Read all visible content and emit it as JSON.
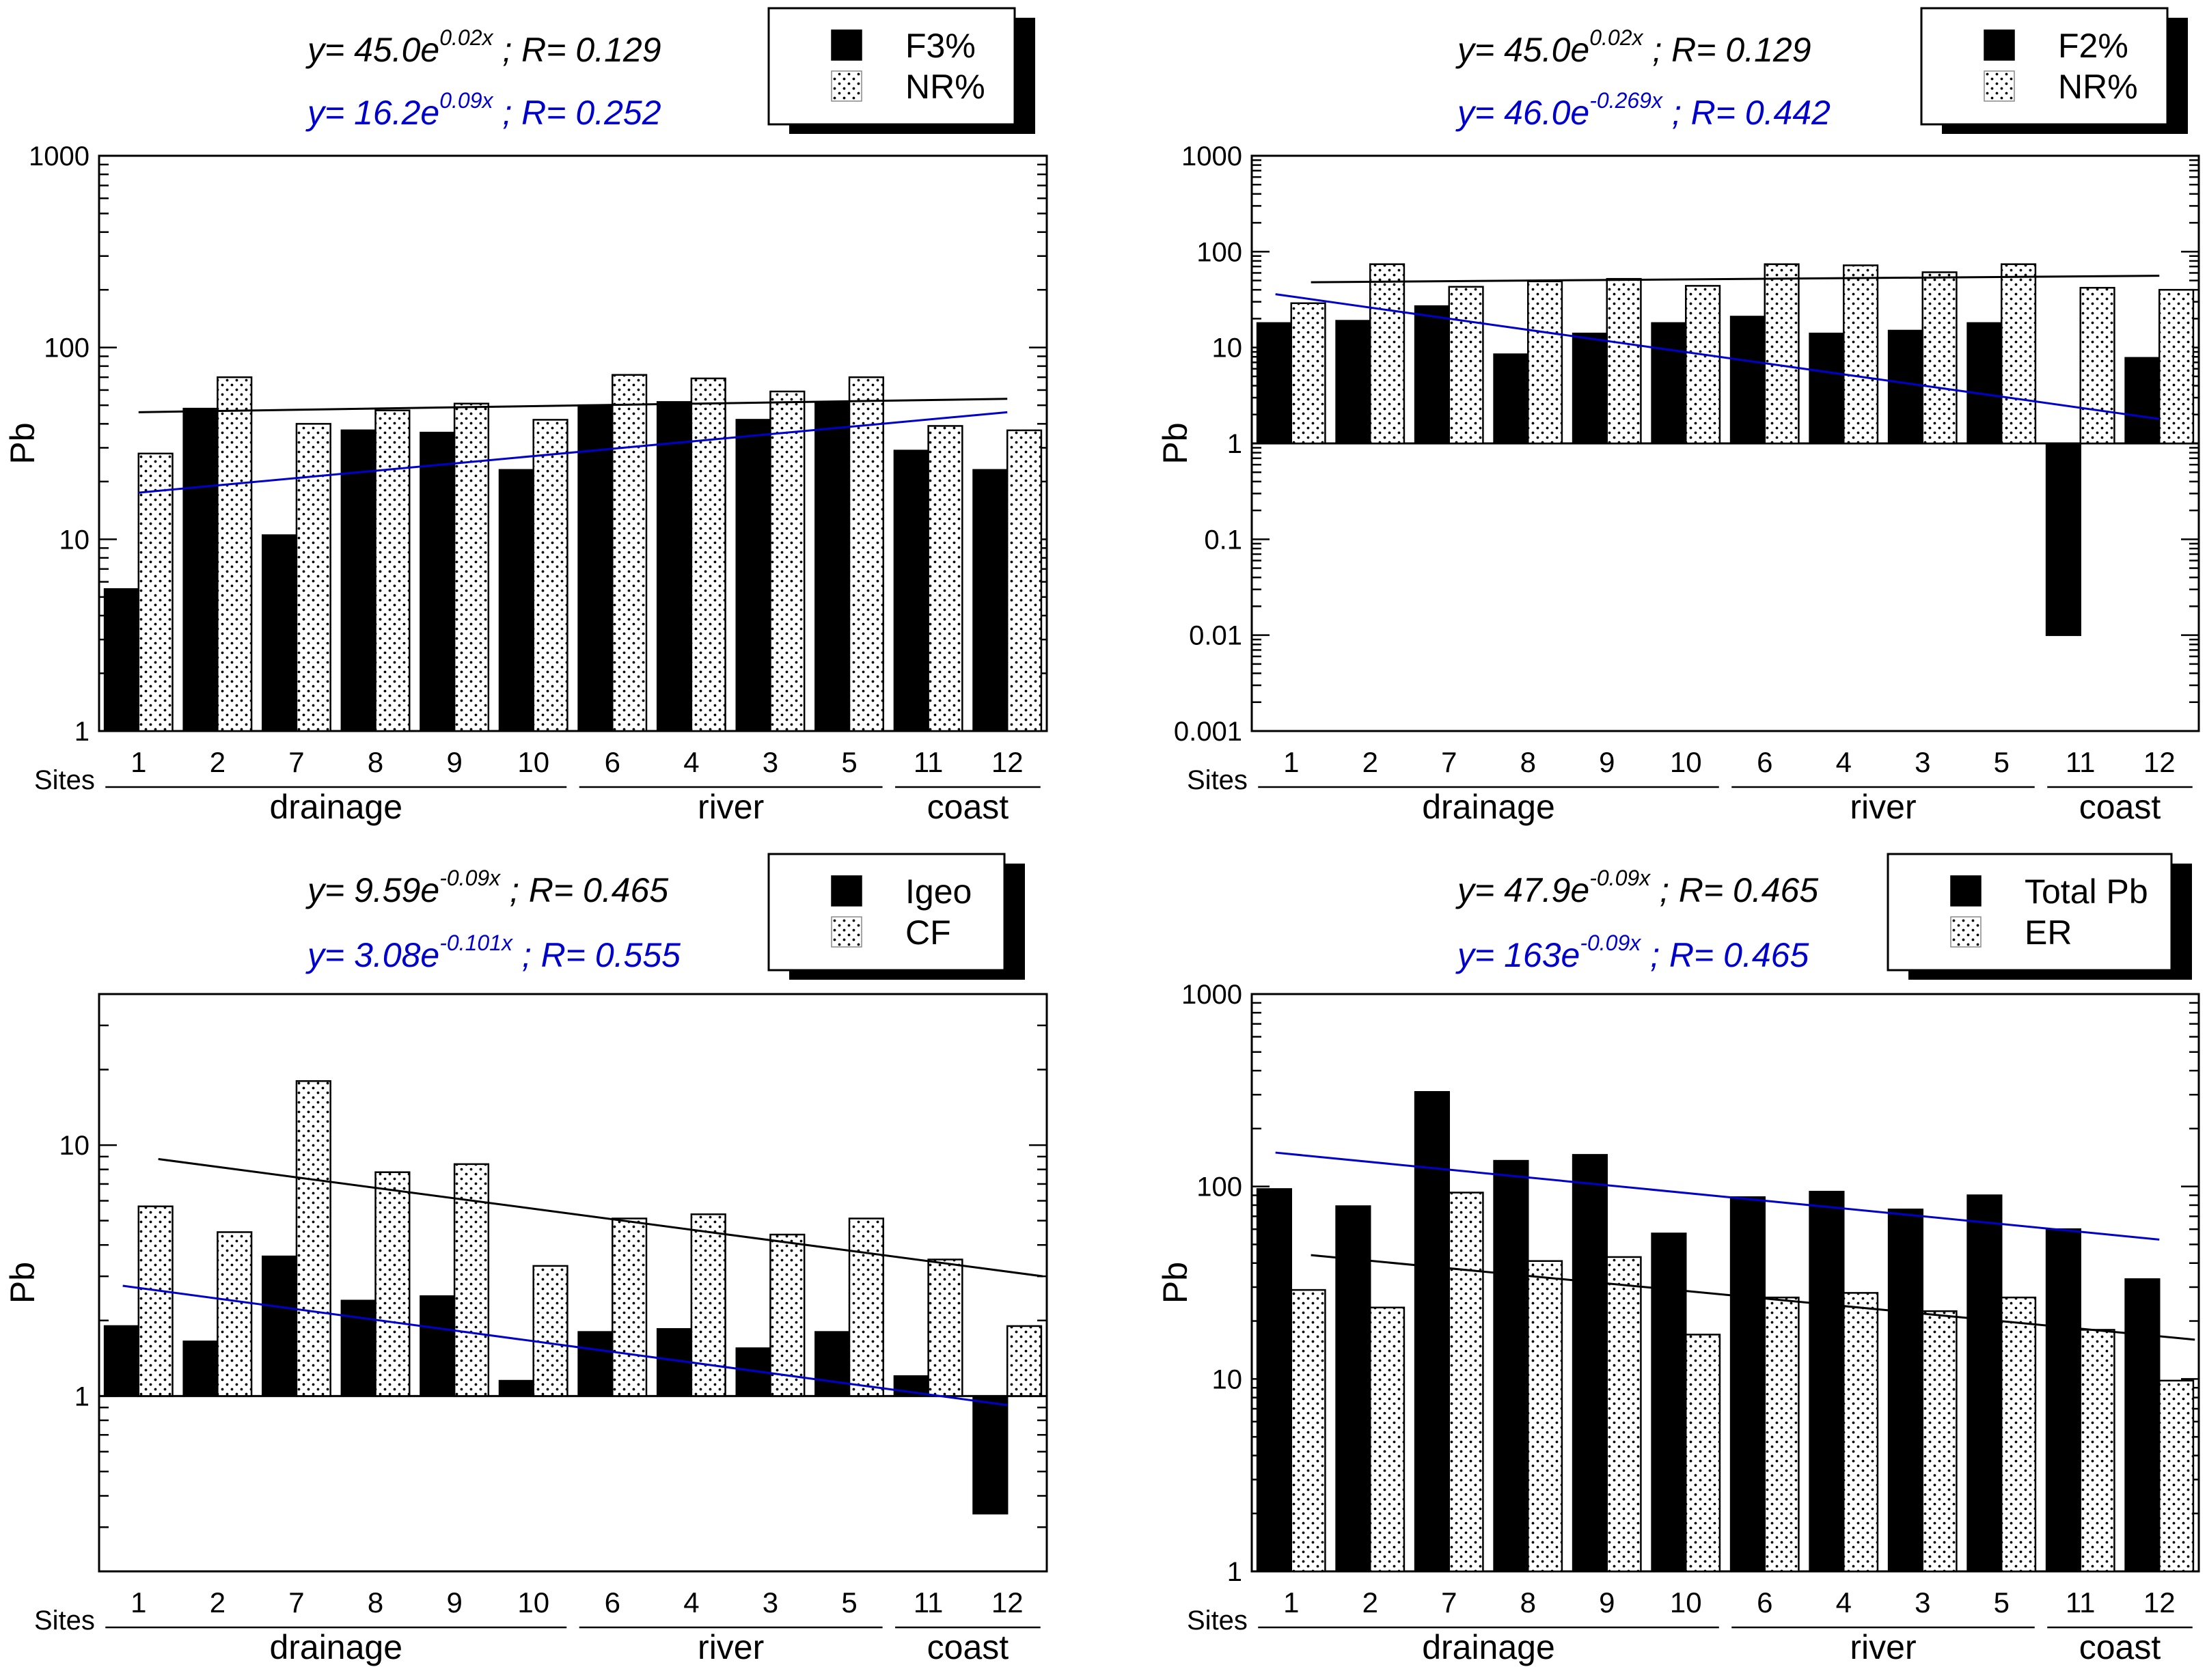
{
  "chart_data": [
    {
      "type": "bar",
      "scale": "log",
      "ylabel": "Pb",
      "ylim": [
        1,
        1000
      ],
      "y_ticks": [
        "1000",
        "100",
        "10",
        "1"
      ],
      "x_prefix": "Sites",
      "categories": [
        "1",
        "2",
        "7",
        "8",
        "9",
        "10",
        "6",
        "4",
        "3",
        "5",
        "11",
        "12"
      ],
      "groups": [
        "drainage",
        "river",
        "coast"
      ],
      "baseline": 1,
      "series": [
        {
          "name": "F3%",
          "style": "solid",
          "values": [
            5.5,
            48,
            10.5,
            37,
            36,
            23,
            50,
            52,
            42,
            52,
            29,
            23
          ]
        },
        {
          "name": "NR%",
          "style": "dotted",
          "values": [
            28,
            70,
            40,
            47,
            51,
            42,
            72,
            69,
            59,
            70,
            39,
            37
          ]
        }
      ],
      "equations": [
        {
          "prefix": "y= 45.0e",
          "exp": "0.02x",
          "suffix": " ; R= 0.129",
          "color": "#000000"
        },
        {
          "prefix": "y= 16.2e",
          "exp": "0.09x",
          "suffix": " ; R= 0.252",
          "color": "#0000cc"
        }
      ],
      "trendlines": [
        {
          "color": "#000000",
          "from": [
            1,
            46
          ],
          "to": [
            12,
            54
          ]
        },
        {
          "color": "#0000cc",
          "from": [
            1,
            17.5
          ],
          "to": [
            12,
            46
          ]
        }
      ]
    },
    {
      "type": "bar",
      "scale": "log",
      "ylabel": "Pb",
      "ylim": [
        0.001,
        1000
      ],
      "y_ticks": [
        "1000",
        "100",
        "10",
        "1",
        "0.1",
        "0.01",
        "0.001"
      ],
      "x_prefix": "Sites",
      "categories": [
        "1",
        "2",
        "7",
        "8",
        "9",
        "10",
        "6",
        "4",
        "3",
        "5",
        "11",
        "12"
      ],
      "groups": [
        "drainage",
        "river",
        "coast"
      ],
      "baseline": 1,
      "series": [
        {
          "name": "F2%",
          "style": "solid",
          "values": [
            18,
            19,
            27,
            8.5,
            14,
            18,
            21,
            14,
            15,
            18,
            0.01,
            7.8
          ]
        },
        {
          "name": "NR%",
          "style": "dotted",
          "values": [
            29,
            74,
            43,
            49,
            52,
            44,
            74,
            72,
            61,
            74,
            42,
            40
          ]
        }
      ],
      "equations": [
        {
          "prefix": "y= 45.0e",
          "exp": "0.02x",
          "suffix": " ; R= 0.129",
          "color": "#000000"
        },
        {
          "prefix": "y= 46.0e",
          "exp": "-0.269x",
          "suffix": " ; R= 0.442",
          "color": "#0000cc"
        }
      ],
      "trendlines": [
        {
          "color": "#000000",
          "from": [
            1.25,
            48
          ],
          "to": [
            12,
            56
          ]
        },
        {
          "color": "#0000cc",
          "from": [
            0.8,
            36
          ],
          "to": [
            12,
            1.8
          ]
        }
      ]
    },
    {
      "type": "bar",
      "scale": "log",
      "ylabel": "Pb",
      "ylim": [
        0.2,
        40
      ],
      "y_ticks": [
        "10",
        "1"
      ],
      "x_prefix": "Sites",
      "categories": [
        "1",
        "2",
        "7",
        "8",
        "9",
        "10",
        "6",
        "4",
        "3",
        "5",
        "11",
        "12"
      ],
      "groups": [
        "drainage",
        "river",
        "coast"
      ],
      "baseline": 1,
      "series": [
        {
          "name": "Igeo",
          "style": "solid",
          "values": [
            1.9,
            1.65,
            3.6,
            2.4,
            2.5,
            1.15,
            1.8,
            1.85,
            1.55,
            1.8,
            1.2,
            0.34
          ]
        },
        {
          "name": "CF",
          "style": "dotted",
          "values": [
            5.7,
            4.5,
            18,
            7.8,
            8.4,
            3.3,
            5.1,
            5.3,
            4.4,
            5.1,
            3.5,
            1.9
          ]
        }
      ],
      "equations": [
        {
          "prefix": "y= 9.59e",
          "exp": "-0.09x",
          "suffix": " ; R= 0.465",
          "color": "#000000"
        },
        {
          "prefix": "y= 3.08e",
          "exp": "-0.101x",
          "suffix": " ; R= 0.555",
          "color": "#0000cc"
        }
      ],
      "trendlines": [
        {
          "color": "#000000",
          "from": [
            1.25,
            8.8
          ],
          "to": [
            12.45,
            3.0
          ]
        },
        {
          "color": "#0000cc",
          "from": [
            0.8,
            2.75
          ],
          "to": [
            12,
            0.92
          ]
        }
      ]
    },
    {
      "type": "bar",
      "scale": "log",
      "ylabel": "Pb",
      "ylim": [
        1,
        1000
      ],
      "y_ticks": [
        "1000",
        "100",
        "10",
        "1"
      ],
      "x_prefix": "Sites",
      "categories": [
        "1",
        "2",
        "7",
        "8",
        "9",
        "10",
        "6",
        "4",
        "3",
        "5",
        "11",
        "12"
      ],
      "groups": [
        "drainage",
        "river",
        "coast"
      ],
      "baseline": 1,
      "series": [
        {
          "name": "Total Pb",
          "style": "solid",
          "values": [
            97,
            79,
            310,
            136,
            146,
            57,
            88,
            94,
            76,
            90,
            60,
            33
          ]
        },
        {
          "name": "ER",
          "style": "dotted",
          "values": [
            29,
            23.5,
            93,
            41,
            43,
            17,
            26.5,
            28,
            22.5,
            26.5,
            18,
            9.8
          ]
        }
      ],
      "equations": [
        {
          "prefix": "y= 47.9e",
          "exp": "-0.09x",
          "suffix": " ; R= 0.465",
          "color": "#000000"
        },
        {
          "prefix": "y= 163e",
          "exp": "-0.09x",
          "suffix": " ; R= 0.465",
          "color": "#0000cc"
        }
      ],
      "trendlines": [
        {
          "color": "#000000",
          "from": [
            1.25,
            44
          ],
          "to": [
            12.45,
            16
          ]
        },
        {
          "color": "#0000cc",
          "from": [
            0.8,
            150
          ],
          "to": [
            12,
            53
          ]
        }
      ]
    }
  ]
}
